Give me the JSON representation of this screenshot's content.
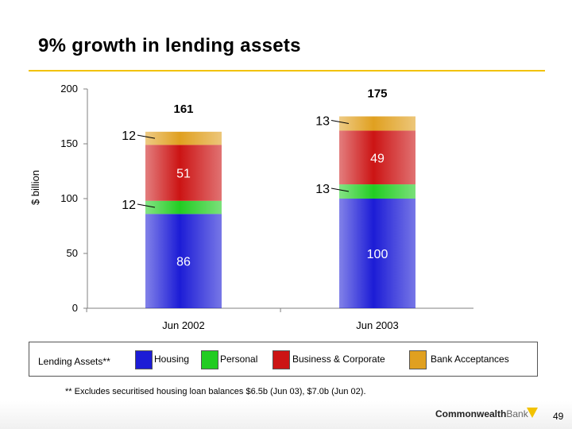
{
  "title": "9% growth in lending assets",
  "legend": {
    "label": "Lending Assets**",
    "items": [
      {
        "label": "Housing",
        "color": "#1c1cd6"
      },
      {
        "label": "Personal",
        "color": "#22cc22"
      },
      {
        "label": "Business & Corporate",
        "color": "#cc1414"
      },
      {
        "label": "Bank Acceptances",
        "color": "#e0a020"
      }
    ]
  },
  "footnote": "** Excludes securitised housing loan balances $6.5b (Jun 03), $7.0b (Jun 02).",
  "footer": {
    "brand_bold": "Commonwealth",
    "brand_light": "Bank",
    "page_number": "49"
  },
  "chart_data": {
    "type": "bar",
    "stacked": true,
    "categories": [
      "Jun 2002",
      "Jun 2003"
    ],
    "series": [
      {
        "name": "Housing",
        "values": [
          86,
          100
        ],
        "color": "#1c1cd6"
      },
      {
        "name": "Personal",
        "values": [
          12,
          13
        ],
        "color": "#22cc22"
      },
      {
        "name": "Business & Corporate",
        "values": [
          51,
          49
        ],
        "color": "#cc1414"
      },
      {
        "name": "Bank Acceptances",
        "values": [
          12,
          13
        ],
        "color": "#e0a020"
      }
    ],
    "totals": [
      161,
      175
    ],
    "ylabel": "$ billion",
    "ylim": [
      0,
      200
    ],
    "yticks": [
      0,
      50,
      100,
      150,
      200
    ],
    "grid": false
  }
}
